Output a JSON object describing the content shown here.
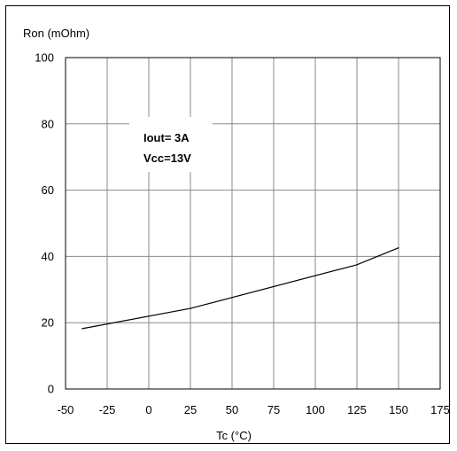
{
  "chart_data": {
    "type": "line",
    "title": "",
    "ylabel": "Ron (mOhm)",
    "xlabel": "Tc (°C)",
    "xlim": [
      -50,
      175
    ],
    "ylim": [
      0,
      100
    ],
    "x_ticks": [
      -50,
      -25,
      0,
      25,
      50,
      75,
      100,
      125,
      150,
      175
    ],
    "y_ticks": [
      0,
      20,
      40,
      60,
      80,
      100
    ],
    "grid": true,
    "series": [
      {
        "x": [
          -40,
          25,
          125,
          150
        ],
        "y": [
          18.2,
          24.3,
          37.5,
          42.6
        ]
      }
    ],
    "annotations": [
      "Iout= 3A",
      "Vcc=13V"
    ]
  }
}
